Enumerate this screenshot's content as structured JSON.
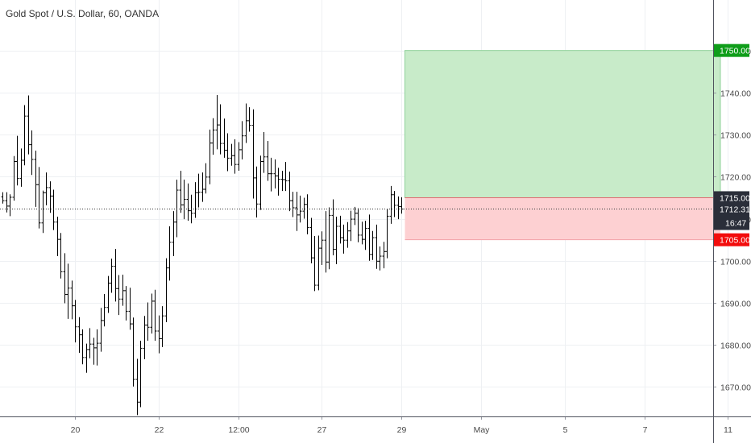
{
  "chart_data": {
    "type": "ohlc",
    "title": "Gold Spot / U.S. Dollar, 60, OANDA",
    "ylim": [
      1663,
      1762
    ],
    "y_ticks": [
      "1670.000",
      "1680.000",
      "1690.000",
      "1700.000",
      "1710.000",
      "1720.000",
      "1730.000",
      "1740.000",
      "1750.000"
    ],
    "y_tick_values": [
      1670,
      1680,
      1690,
      1700,
      1710,
      1720,
      1730,
      1740,
      1750
    ],
    "x_ticks": [
      "20",
      "22",
      "12:00",
      "27",
      "29",
      "May",
      "5",
      "7",
      "11"
    ],
    "x_tick_index": [
      20,
      43,
      65,
      88,
      110,
      132,
      155,
      177,
      200
    ],
    "grid": true,
    "series": [
      {
        "ohlc": [
          [
            1715.2,
            1716.3,
            1713.6,
            1714.3
          ],
          [
            1714.3,
            1716.3,
            1711.5,
            1713.0
          ],
          [
            1713.0,
            1715.8,
            1710.6,
            1715.1
          ],
          [
            1715.1,
            1724.9,
            1714.3,
            1723.6
          ],
          [
            1723.6,
            1729.7,
            1717.9,
            1719.6
          ],
          [
            1719.6,
            1726.7,
            1717.6,
            1723.9
          ],
          [
            1723.9,
            1737.0,
            1722.7,
            1734.4
          ],
          [
            1734.4,
            1739.3,
            1725.3,
            1727.6
          ],
          [
            1727.6,
            1731.0,
            1720.4,
            1724.1
          ],
          [
            1724.1,
            1726.2,
            1712.8,
            1718.1
          ],
          [
            1718.1,
            1722.3,
            1707.7,
            1709.0
          ],
          [
            1709.0,
            1716.7,
            1706.6,
            1716.2
          ],
          [
            1716.2,
            1721.0,
            1713.2,
            1717.4
          ],
          [
            1717.4,
            1718.9,
            1711.4,
            1715.4
          ],
          [
            1715.4,
            1716.9,
            1707.3,
            1709.2
          ],
          [
            1709.2,
            1710.5,
            1701.1,
            1705.1
          ],
          [
            1705.1,
            1706.6,
            1695.8,
            1697.4
          ],
          [
            1697.4,
            1701.8,
            1689.9,
            1692.0
          ],
          [
            1692.0,
            1699.3,
            1686.2,
            1693.5
          ],
          [
            1693.5,
            1695.3,
            1686.1,
            1689.3
          ],
          [
            1689.3,
            1690.7,
            1680.6,
            1684.3
          ],
          [
            1684.3,
            1686.6,
            1678.1,
            1682.4
          ],
          [
            1682.4,
            1683.7,
            1675.4,
            1677.0
          ],
          [
            1677.0,
            1680.3,
            1673.4,
            1678.9
          ],
          [
            1678.9,
            1684.0,
            1676.8,
            1680.2
          ],
          [
            1680.2,
            1681.7,
            1675.3,
            1679.3
          ],
          [
            1679.3,
            1683.7,
            1675.1,
            1680.4
          ],
          [
            1680.4,
            1688.8,
            1678.4,
            1685.8
          ],
          [
            1685.8,
            1692.1,
            1684.4,
            1688.9
          ],
          [
            1688.9,
            1696.4,
            1687.6,
            1694.7
          ],
          [
            1694.7,
            1700.5,
            1692.4,
            1698.7
          ],
          [
            1698.7,
            1702.8,
            1690.3,
            1693.4
          ],
          [
            1693.4,
            1696.6,
            1687.1,
            1690.9
          ],
          [
            1690.9,
            1696.7,
            1689.3,
            1692.9
          ],
          [
            1692.9,
            1694.0,
            1685.8,
            1688.0
          ],
          [
            1688.0,
            1693.6,
            1683.6,
            1685.0
          ],
          [
            1685.0,
            1686.5,
            1670.1,
            1671.8
          ],
          [
            1671.8,
            1676.7,
            1663.3,
            1666.4
          ],
          [
            1666.4,
            1681.0,
            1665.2,
            1679.2
          ],
          [
            1679.2,
            1686.9,
            1676.6,
            1684.7
          ],
          [
            1684.7,
            1690.1,
            1681.0,
            1684.2
          ],
          [
            1684.2,
            1692.2,
            1682.7,
            1690.4
          ],
          [
            1690.4,
            1693.1,
            1681.0,
            1683.3
          ],
          [
            1683.3,
            1687.0,
            1678.0,
            1681.5
          ],
          [
            1681.5,
            1689.2,
            1679.5,
            1686.9
          ],
          [
            1686.9,
            1700.6,
            1685.4,
            1698.3
          ],
          [
            1698.3,
            1708.2,
            1695.3,
            1704.4
          ],
          [
            1704.4,
            1711.8,
            1701.1,
            1709.2
          ],
          [
            1709.2,
            1719.3,
            1705.6,
            1716.8
          ],
          [
            1716.8,
            1721.4,
            1711.4,
            1713.3
          ],
          [
            1713.3,
            1719.3,
            1709.9,
            1714.6
          ],
          [
            1714.6,
            1718.4,
            1709.5,
            1711.9
          ],
          [
            1711.9,
            1715.7,
            1708.9,
            1711.3
          ],
          [
            1711.3,
            1718.7,
            1710.2,
            1716.2
          ],
          [
            1716.2,
            1720.7,
            1712.7,
            1716.3
          ],
          [
            1716.3,
            1721.0,
            1714.0,
            1717.0
          ],
          [
            1717.0,
            1723.2,
            1716.0,
            1719.9
          ],
          [
            1719.9,
            1731.2,
            1718.2,
            1728.0
          ],
          [
            1728.0,
            1733.9,
            1725.2,
            1731.1
          ],
          [
            1731.1,
            1739.4,
            1726.5,
            1732.3
          ],
          [
            1732.3,
            1737.2,
            1725.3,
            1727.9
          ],
          [
            1727.9,
            1733.8,
            1724.5,
            1726.3
          ],
          [
            1726.3,
            1730.3,
            1721.3,
            1724.4
          ],
          [
            1724.4,
            1727.8,
            1722.6,
            1725.0
          ],
          [
            1725.0,
            1728.9,
            1720.7,
            1722.9
          ],
          [
            1722.9,
            1728.2,
            1721.4,
            1726.4
          ],
          [
            1726.4,
            1733.2,
            1724.1,
            1729.7
          ],
          [
            1729.7,
            1737.4,
            1728.0,
            1733.3
          ],
          [
            1733.3,
            1736.5,
            1730.7,
            1732.2
          ],
          [
            1732.2,
            1736.0,
            1714.8,
            1719.7
          ],
          [
            1719.7,
            1722.4,
            1710.3,
            1713.5
          ],
          [
            1713.5,
            1725.0,
            1712.1,
            1723.6
          ],
          [
            1723.6,
            1730.6,
            1720.9,
            1724.7
          ],
          [
            1724.7,
            1728.5,
            1719.0,
            1720.7
          ],
          [
            1720.7,
            1724.5,
            1716.5,
            1720.7
          ],
          [
            1720.7,
            1724.1,
            1717.2,
            1720.2
          ],
          [
            1720.2,
            1722.1,
            1715.5,
            1719.4
          ],
          [
            1719.4,
            1721.4,
            1716.6,
            1719.3
          ],
          [
            1719.3,
            1723.5,
            1716.6,
            1719.0
          ],
          [
            1719.0,
            1721.2,
            1711.8,
            1714.3
          ],
          [
            1714.3,
            1716.4,
            1710.4,
            1712.6
          ],
          [
            1712.6,
            1716.4,
            1707.1,
            1710.9
          ],
          [
            1710.9,
            1715.5,
            1709.1,
            1711.8
          ],
          [
            1711.8,
            1715.0,
            1710.0,
            1713.4
          ],
          [
            1713.4,
            1715.8,
            1706.3,
            1707.9
          ],
          [
            1707.9,
            1710.2,
            1699.4,
            1700.7
          ],
          [
            1700.7,
            1705.9,
            1692.8,
            1694.2
          ],
          [
            1694.2,
            1706.0,
            1693.0,
            1703.0
          ],
          [
            1703.0,
            1707.0,
            1699.0,
            1704.9
          ],
          [
            1704.9,
            1711.8,
            1697.2,
            1699.7
          ],
          [
            1699.7,
            1712.7,
            1698.0,
            1710.8
          ],
          [
            1710.8,
            1714.6,
            1701.3,
            1702.7
          ],
          [
            1702.7,
            1710.5,
            1699.2,
            1708.2
          ],
          [
            1708.2,
            1710.7,
            1704.1,
            1705.5
          ],
          [
            1705.5,
            1708.6,
            1701.7,
            1704.9
          ],
          [
            1704.9,
            1709.2,
            1703.1,
            1707.1
          ],
          [
            1707.1,
            1711.9,
            1704.7,
            1709.9
          ],
          [
            1709.9,
            1712.8,
            1708.5,
            1711.3
          ],
          [
            1711.3,
            1712.5,
            1704.4,
            1706.1
          ],
          [
            1706.1,
            1709.3,
            1703.9,
            1705.1
          ],
          [
            1705.1,
            1709.5,
            1702.6,
            1707.7
          ],
          [
            1707.7,
            1711.0,
            1700.0,
            1701.5
          ],
          [
            1701.5,
            1707.1,
            1700.2,
            1705.5
          ],
          [
            1705.5,
            1708.6,
            1698.1,
            1699.9
          ],
          [
            1699.9,
            1703.4,
            1697.7,
            1701.1
          ],
          [
            1701.1,
            1704.5,
            1698.2,
            1702.2
          ],
          [
            1702.2,
            1712.3,
            1700.6,
            1710.6
          ],
          [
            1710.6,
            1717.8,
            1708.8,
            1715.7
          ],
          [
            1715.7,
            1716.6,
            1710.4,
            1713.2
          ],
          [
            1713.2,
            1715.3,
            1709.9,
            1712.9
          ],
          [
            1712.9,
            1715.1,
            1711.2,
            1712.3
          ]
        ]
      }
    ],
    "position": {
      "type": "long",
      "target": "1750.000",
      "entry": "1715.000",
      "stop": "1705.000",
      "target_value": 1750,
      "entry_value": 1715,
      "stop_value": 1705,
      "start_index": 111,
      "end_index": 198,
      "profit_color": "#c8ebc9",
      "loss_color": "#fdd0d2"
    },
    "last_price": "1712.314",
    "last_price_value": 1712.314,
    "countdown": "16:47",
    "colors": {
      "bar": "#000000",
      "target_badge": "#0f9d1a",
      "stop_badge": "#f20c0c",
      "entry_badge": "#2a2e39",
      "price_badge": "#2a2e39",
      "grid": "#eef0f3"
    }
  }
}
